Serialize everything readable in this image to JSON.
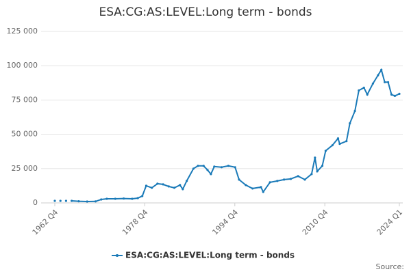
{
  "chart_data": {
    "type": "line",
    "title": "ESA:CG:AS:LEVEL:Long term - bonds",
    "source": "Source:",
    "x": [
      1962.75,
      1963.5,
      1963.75,
      1964.5,
      1964.75,
      1965.5,
      1965.75,
      1967,
      1968.5,
      1970,
      1971,
      1972,
      1973.5,
      1975,
      1976.5,
      1977.5,
      1978.3,
      1979,
      1980,
      1981,
      1982,
      1983,
      1984,
      1985,
      1985.5,
      1986.2,
      1987.4,
      1988.2,
      1989.2,
      1989.9,
      1990.5,
      1991.1,
      1992.4,
      1993.6,
      1994.8,
      1995.5,
      1996.7,
      1997.9,
      1999.4,
      1999.8,
      2001,
      2002.3,
      2003.5,
      2004.7,
      2006,
      2007.2,
      2008.4,
      2009.0,
      2009.4,
      2010.3,
      2010.9,
      2012.1,
      2013.1,
      2013.4,
      2014.6,
      2015.2,
      2016.1,
      2016.8,
      2017.7,
      2018.3,
      2019.3,
      2020.2,
      2020.8,
      2021.4,
      2022,
      2022.6,
      2023.2,
      2024
    ],
    "series": [
      {
        "name": "ESA:CG:AS:LEVEL:Long term - bonds",
        "color": "#1a7ab8",
        "values": [
          1500,
          null,
          1500,
          null,
          1500,
          null,
          1500,
          1200,
          1000,
          1100,
          2500,
          3000,
          3000,
          3200,
          3000,
          3500,
          5000,
          12500,
          11000,
          14000,
          13500,
          12000,
          11000,
          13000,
          10000,
          16000,
          25000,
          27000,
          27000,
          24000,
          21000,
          26500,
          26000,
          27000,
          26000,
          17000,
          13000,
          10500,
          11500,
          8000,
          15000,
          16000,
          17000,
          17500,
          19500,
          17000,
          21000,
          33000,
          23000,
          27000,
          38000,
          42000,
          47000,
          43000,
          45000,
          58000,
          67000,
          82000,
          84000,
          79000,
          87000,
          93000,
          97000,
          88000,
          88000,
          79000,
          78000,
          79500
        ]
      }
    ],
    "xlim": [
      1962.75,
      2024
    ],
    "xticks": [
      {
        "value": 1962.75,
        "label": "1962 Q4"
      },
      {
        "value": 1978.75,
        "label": "1978 Q4"
      },
      {
        "value": 1994.75,
        "label": "1994 Q4"
      },
      {
        "value": 2010.75,
        "label": "2010 Q4"
      },
      {
        "value": 2024,
        "label": "2024 Q1"
      }
    ],
    "ylim": [
      0,
      125000
    ],
    "yticks": [
      {
        "value": 0,
        "label": "0"
      },
      {
        "value": 25000,
        "label": "25 000"
      },
      {
        "value": 50000,
        "label": "50 000"
      },
      {
        "value": 75000,
        "label": "75 000"
      },
      {
        "value": 100000,
        "label": "100 000"
      },
      {
        "value": 125000,
        "label": "125 000"
      }
    ],
    "grid": true
  }
}
